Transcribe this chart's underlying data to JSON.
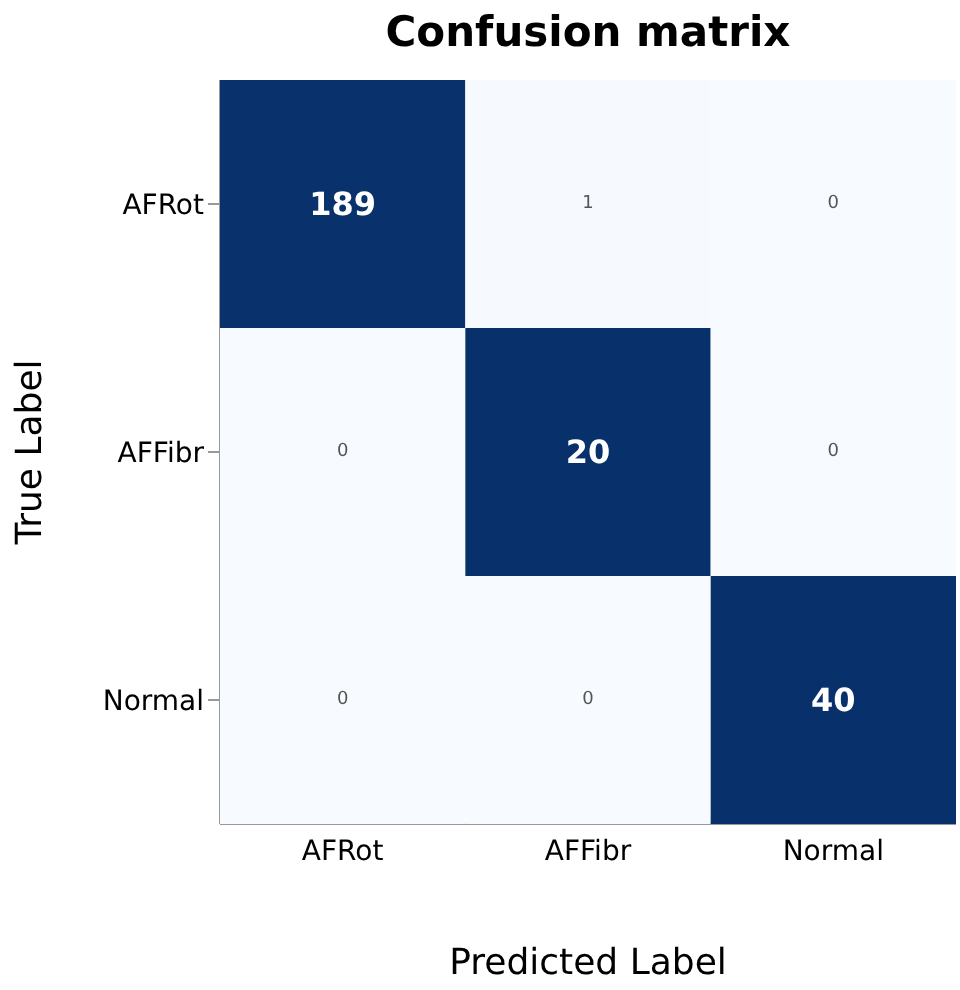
{
  "chart_data": {
    "type": "heatmap",
    "title": "Confusion matrix",
    "xlabel": "Predicted Label",
    "ylabel": "True Label",
    "categories": [
      "AFRot",
      "AFFibr",
      "Normal"
    ],
    "y_categories": [
      "AFRot",
      "AFFibr",
      "Normal"
    ],
    "cells": [
      [
        189,
        1,
        0
      ],
      [
        0,
        20,
        0
      ],
      [
        0,
        0,
        40
      ]
    ],
    "data_labels": true
  }
}
